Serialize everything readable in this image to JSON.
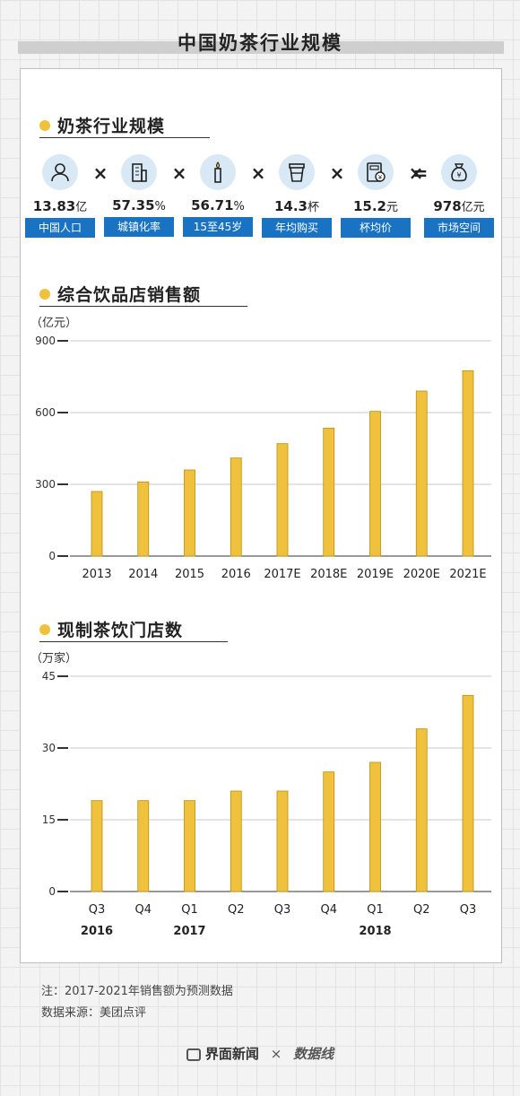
{
  "page_title": "中国奶茶行业规模",
  "section1": {
    "title": "奶茶行业规模",
    "items": [
      {
        "icon": "people-icon",
        "value": "13.83",
        "unit": "亿",
        "label": "中国人口"
      },
      {
        "icon": "building-icon",
        "value": "57.35",
        "unit": "%",
        "label": "城镇化率"
      },
      {
        "icon": "candle-icon",
        "value": "56.71",
        "unit": "%",
        "label": "15至45岁"
      },
      {
        "icon": "cup-icon",
        "value": "14.3",
        "unit": "杯",
        "label": "年均购买"
      },
      {
        "icon": "calculator-icon",
        "value": "15.2",
        "unit": "元",
        "label": "杯均价"
      },
      {
        "icon": "money-bag-icon",
        "value": "978",
        "unit": "亿元",
        "label": "市场空间"
      }
    ],
    "operators": [
      "×",
      "×",
      "×",
      "×",
      "×",
      "="
    ]
  },
  "section2": {
    "title": "综合饮品店销售额"
  },
  "section3": {
    "title": "现制茶饮门店数"
  },
  "colors": {
    "bar": "#f0c13c",
    "bar_stroke": "#b8900e",
    "label_bg": "#1a73c2",
    "dot": "#f0c13c"
  },
  "chart_data": [
    {
      "type": "bar",
      "title": "综合饮品店销售额",
      "ylabel": "（亿元）",
      "categories": [
        "2013",
        "2014",
        "2015",
        "2016",
        "2017E",
        "2018E",
        "2019E",
        "2020E",
        "2021E"
      ],
      "values": [
        270,
        310,
        360,
        410,
        470,
        535,
        605,
        690,
        775
      ],
      "ylim": [
        0,
        900
      ],
      "yticks": [
        0,
        300,
        600,
        900
      ],
      "grid": true
    },
    {
      "type": "bar",
      "title": "现制茶饮门店数",
      "ylabel": "（万家）",
      "categories": [
        "Q3",
        "Q4",
        "Q1",
        "Q2",
        "Q3",
        "Q4",
        "Q1",
        "Q2",
        "Q3"
      ],
      "year_labels": [
        "2016",
        "2017",
        "2018"
      ],
      "year_label_positions": [
        0,
        2,
        6
      ],
      "values": [
        19,
        19,
        19,
        21,
        21,
        25,
        27,
        34,
        41
      ],
      "ylim": [
        0,
        45
      ],
      "yticks": [
        0,
        15,
        30,
        45
      ],
      "grid": true
    }
  ],
  "notes": {
    "note1": "注：2017-2021年销售额为预测数据",
    "note2": "数据来源：美团点评"
  },
  "footer": {
    "brand1": "界面新闻",
    "sep": "×",
    "brand2": "数据线"
  }
}
